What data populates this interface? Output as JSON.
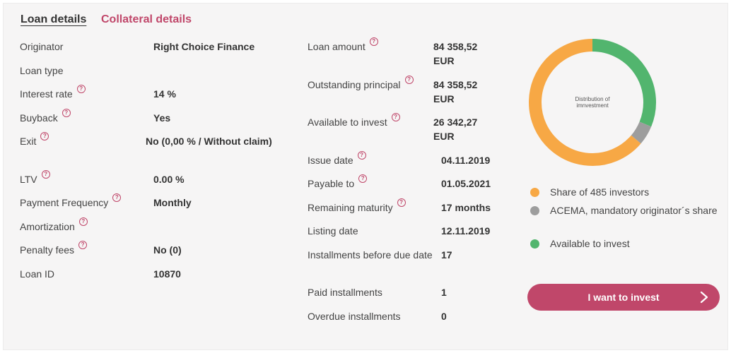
{
  "tabs": {
    "loan_details": "Loan details",
    "collateral_details": "Collateral details"
  },
  "help_glyph": "?",
  "left": {
    "originator": {
      "label": "Originator",
      "value": "Right Choice Finance"
    },
    "loan_type": {
      "label": "Loan type",
      "value": ""
    },
    "interest_rate": {
      "label": "Interest rate",
      "value": "14 %"
    },
    "buyback": {
      "label": "Buyback",
      "value": "Yes"
    },
    "exit": {
      "label": "Exit",
      "value": "No (0,00 % / Without claim)"
    },
    "ltv": {
      "label": "LTV",
      "value": "0.00 %"
    },
    "payment_frequency": {
      "label": "Payment Frequency",
      "value": "Monthly"
    },
    "amortization": {
      "label": "Amortization",
      "value": ""
    },
    "penalty_fees": {
      "label": "Penalty fees",
      "value": "No (0)"
    },
    "loan_id": {
      "label": "Loan ID",
      "value": "10870"
    }
  },
  "middle": {
    "loan_amount": {
      "label": "Loan amount",
      "value": "84 358,52 EUR"
    },
    "outstanding_principal": {
      "label": "Outstanding principal",
      "value": "84 358,52 EUR"
    },
    "available_to_invest": {
      "label": "Available to invest",
      "value": "26 342,27 EUR"
    },
    "issue_date": {
      "label": "Issue date",
      "value": "04.11.2019"
    },
    "payable_to": {
      "label": "Payable to",
      "value": "01.05.2021"
    },
    "remaining_maturity": {
      "label": "Remaining maturity",
      "value": "17 months"
    },
    "listing_date": {
      "label": "Listing date",
      "value": "12.11.2019"
    },
    "installments_before_due": {
      "label": "Installments before due date",
      "value": "17"
    },
    "paid_installments": {
      "label": "Paid installments",
      "value": "1"
    },
    "overdue_installments": {
      "label": "Overdue installments",
      "value": "0"
    }
  },
  "distribution": {
    "caption": "Distribution of imnvestment",
    "segments": [
      {
        "name": "Available to invest",
        "fraction": 0.3123,
        "color": "#52b56e"
      },
      {
        "name": "ACEMA, mandatory originator´s share",
        "fraction": 0.05,
        "color": "#9d9d9d"
      },
      {
        "name": "Share of 485 investors",
        "fraction": 0.6377,
        "color": "#f7a845"
      }
    ],
    "legend": [
      {
        "label": "Share of 485 investors",
        "color": "#f7a845"
      },
      {
        "label": "ACEMA, mandatory originator´s share",
        "color": "#9d9d9d"
      },
      {
        "label": "Available to invest",
        "color": "#52b56e"
      }
    ]
  },
  "invest_button": {
    "label": "I want to invest"
  },
  "colors": {
    "accent": "#c0476a",
    "panel_bg": "#f6f5f5"
  }
}
